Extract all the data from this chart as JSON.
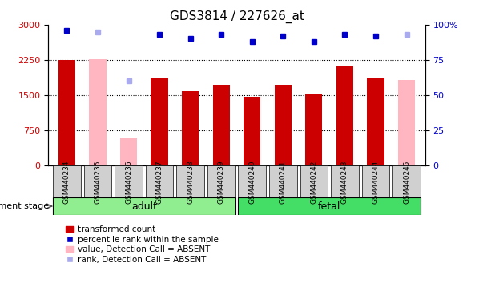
{
  "title": "GDS3814 / 227626_at",
  "samples": [
    "GSM440234",
    "GSM440235",
    "GSM440236",
    "GSM440237",
    "GSM440238",
    "GSM440239",
    "GSM440240",
    "GSM440241",
    "GSM440242",
    "GSM440243",
    "GSM440244",
    "GSM440245"
  ],
  "bar_values": [
    2250,
    null,
    null,
    1850,
    1580,
    1720,
    1460,
    1720,
    1510,
    2120,
    1850,
    null
  ],
  "bar_absent": [
    null,
    2270,
    580,
    null,
    null,
    null,
    null,
    null,
    null,
    null,
    null,
    1820
  ],
  "rank_values": [
    96,
    null,
    null,
    93,
    90,
    93,
    88,
    92,
    88,
    93,
    92,
    null
  ],
  "rank_absent": [
    null,
    95,
    60,
    null,
    null,
    null,
    null,
    null,
    null,
    null,
    null,
    93
  ],
  "groups": [
    {
      "label": "adult",
      "start": 0,
      "end": 6,
      "color": "#90ee90"
    },
    {
      "label": "fetal",
      "start": 6,
      "end": 12,
      "color": "#44dd66"
    }
  ],
  "ylim_left": [
    0,
    3000
  ],
  "ylim_right": [
    0,
    100
  ],
  "yticks_left": [
    0,
    750,
    1500,
    2250,
    3000
  ],
  "yticks_right": [
    0,
    25,
    50,
    75,
    100
  ],
  "bar_color": "#cc0000",
  "bar_absent_color": "#ffb6c1",
  "rank_color": "#0000cc",
  "rank_absent_color": "#aaaaee",
  "background_color": "#ffffff",
  "bar_width": 0.55,
  "rank_marker_size": 5,
  "label_fontsize": 6.5,
  "tick_fontsize": 8,
  "title_fontsize": 11,
  "sample_box_color": "#d0d0d0",
  "dev_stage_text": "development stage"
}
